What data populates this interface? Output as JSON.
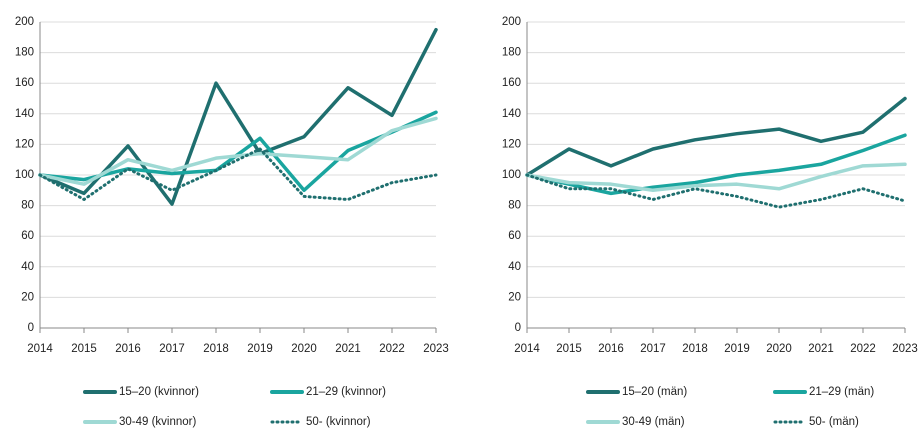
{
  "chart_data": [
    {
      "type": "line",
      "categories": [
        "2014",
        "2015",
        "2016",
        "2017",
        "2018",
        "2019",
        "2020",
        "2021",
        "2022",
        "2023"
      ],
      "ylim": [
        0,
        200
      ],
      "yticks": [
        0,
        20,
        40,
        60,
        80,
        100,
        120,
        140,
        160,
        180,
        200
      ],
      "grid": true,
      "series": [
        {
          "name": "15–20 (kvinnor)",
          "color": "#1f6f6f",
          "style": "solid",
          "values": [
            100,
            88,
            119,
            81,
            160,
            114,
            125,
            157,
            139,
            195
          ]
        },
        {
          "name": "21–29 (kvinnor)",
          "color": "#1aa59f",
          "style": "solid",
          "values": [
            100,
            97,
            104,
            101,
            103,
            124,
            90,
            116,
            128,
            141
          ]
        },
        {
          "name": "30-49 (kvinnor)",
          "color": "#9fd9d4",
          "style": "solid",
          "values": [
            100,
            94,
            110,
            103,
            111,
            114,
            112,
            110,
            129,
            137
          ]
        },
        {
          "name": "50- (kvinnor)",
          "color": "#1f6f6f",
          "style": "dotted",
          "values": [
            100,
            84,
            104,
            90,
            103,
            117,
            86,
            84,
            95,
            100
          ]
        }
      ]
    },
    {
      "type": "line",
      "categories": [
        "2014",
        "2015",
        "2016",
        "2017",
        "2018",
        "2019",
        "2020",
        "2021",
        "2022",
        "2023"
      ],
      "ylim": [
        0,
        200
      ],
      "yticks": [
        0,
        20,
        40,
        60,
        80,
        100,
        120,
        140,
        160,
        180,
        200
      ],
      "grid": true,
      "series": [
        {
          "name": "15–20 (män)",
          "color": "#1f6f6f",
          "style": "solid",
          "values": [
            100,
            117,
            106,
            117,
            123,
            127,
            130,
            122,
            128,
            150
          ]
        },
        {
          "name": "21–29 (män)",
          "color": "#1aa59f",
          "style": "solid",
          "values": [
            100,
            94,
            88,
            92,
            95,
            100,
            103,
            107,
            116,
            126
          ]
        },
        {
          "name": "30-49 (män)",
          "color": "#9fd9d4",
          "style": "solid",
          "values": [
            100,
            95,
            94,
            90,
            93,
            94,
            91,
            99,
            106,
            107
          ]
        },
        {
          "name": "50- (män)",
          "color": "#1f6f6f",
          "style": "dotted",
          "values": [
            100,
            91,
            91,
            84,
            91,
            86,
            79,
            84,
            91,
            83
          ]
        }
      ]
    }
  ]
}
